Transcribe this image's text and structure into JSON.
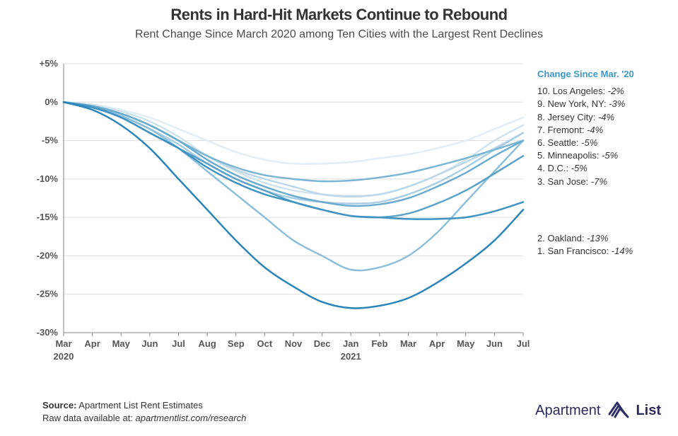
{
  "title": "Rents in Hard-Hit Markets Continue to Rebound",
  "title_fontsize": 22,
  "subtitle": "Rent Change Since March 2020 among Ten Cities with the Largest Rent Declines",
  "subtitle_fontsize": 16,
  "subtitle_color": "#4a4a4a",
  "chart": {
    "type": "line",
    "background_color": "#ffffff",
    "x_categories": [
      "Mar",
      "Apr",
      "May",
      "Jun",
      "Jul",
      "Aug",
      "Sep",
      "Oct",
      "Nov",
      "Dec",
      "Jan",
      "Feb",
      "Mar",
      "Apr",
      "May",
      "Jun",
      "Jul"
    ],
    "x_year_labels": {
      "0": "2020",
      "10": "2021"
    },
    "x_label_fontsize": 13,
    "x_label_weight": "700",
    "ylim": [
      -30,
      5
    ],
    "ytick_step": 5,
    "y_tick_labels": [
      "+5%",
      "0%",
      "-5%",
      "-10%",
      "-15%",
      "-20%",
      "-25%",
      "-30%"
    ],
    "y_tick_values": [
      5,
      0,
      -5,
      -10,
      -15,
      -20,
      -25,
      -30
    ],
    "grid_color": "#dddddd",
    "grid_width": 1,
    "axis_color": "#888888",
    "line_width": 2.5,
    "series": [
      {
        "key": "la",
        "label": "10. Los Angeles:",
        "value": "-2%",
        "color": "#e2eef4",
        "data": [
          0,
          -0.3,
          -1,
          -2,
          -3.5,
          -5,
          -6.5,
          -7.5,
          -8,
          -8,
          -7.8,
          -7.3,
          -6.8,
          -6,
          -5,
          -3.5,
          -2
        ]
      },
      {
        "key": "ny",
        "label": "9. New York, NY:",
        "value": "-3%",
        "color": "#cfe3ee",
        "data": [
          0,
          -0.4,
          -1.2,
          -2.5,
          -4.5,
          -7,
          -9,
          -10.5,
          -11.5,
          -12,
          -12.2,
          -12,
          -11,
          -9.5,
          -7.5,
          -5,
          -3
        ]
      },
      {
        "key": "jc",
        "label": "8. Jersey City:",
        "value": "-4%",
        "color": "#bcd8e8",
        "data": [
          0,
          -0.5,
          -1.5,
          -3,
          -5,
          -7,
          -8.8,
          -10,
          -11,
          -12,
          -12.3,
          -12,
          -11,
          -9.5,
          -7.8,
          -6,
          -4
        ]
      },
      {
        "key": "fr",
        "label": "7. Fremont:",
        "value": "-4%",
        "color": "#a9cde2",
        "data": [
          0,
          -0.6,
          -1.8,
          -3.5,
          -5.5,
          -8,
          -10,
          -11.5,
          -12.5,
          -13,
          -13.2,
          -13,
          -12,
          -10.5,
          -8.5,
          -6.2,
          -4
        ]
      },
      {
        "key": "sea",
        "label": "6. Seattle:",
        "value": "-5%",
        "color": "#8cbfda",
        "data": [
          0,
          -0.6,
          -1.8,
          -3.5,
          -6,
          -9,
          -12,
          -15,
          -18,
          -20,
          -21.8,
          -21.5,
          -20,
          -17,
          -13,
          -9,
          -5
        ]
      },
      {
        "key": "min",
        "label": "5. Minneapolis:",
        "value": "-5%",
        "color": "#7bb5d4",
        "data": [
          0,
          -0.5,
          -1.5,
          -3,
          -5,
          -7,
          -8.5,
          -9.5,
          -10,
          -10.3,
          -10.2,
          -9.8,
          -9.2,
          -8.3,
          -7.3,
          -6.2,
          -5
        ]
      },
      {
        "key": "dc",
        "label": "4. D.C.:",
        "value": "-5%",
        "color": "#6aaccf",
        "data": [
          0,
          -0.5,
          -1.5,
          -3,
          -5,
          -7.5,
          -9.5,
          -11,
          -12.2,
          -13,
          -13.5,
          -13.3,
          -12.5,
          -11,
          -9.2,
          -7,
          -5
        ]
      },
      {
        "key": "sj",
        "label": "3. San Jose:",
        "value": "-7%",
        "color": "#5aa2c9",
        "data": [
          0,
          -0.6,
          -2,
          -4,
          -6,
          -8,
          -10,
          -11.5,
          -13,
          -14,
          -14.8,
          -15,
          -14.5,
          -13.2,
          -11.5,
          -9.3,
          -7
        ]
      },
      {
        "key": "oak",
        "label": "2. Oakland:",
        "value": "-13%",
        "color": "#3f93c2",
        "data": [
          0,
          -0.7,
          -2,
          -4,
          -6,
          -8.5,
          -10.5,
          -12,
          -13,
          -14,
          -14.8,
          -15,
          -15.2,
          -15.2,
          -15,
          -14.2,
          -13
        ]
      },
      {
        "key": "sf",
        "label": "1. San Francisco:",
        "value": "-14%",
        "color": "#2b84b8",
        "data": [
          0,
          -1,
          -3,
          -6,
          -10,
          -14,
          -18,
          -21.5,
          -24,
          -26,
          -26.8,
          -26.5,
          -25.5,
          -23.5,
          -21,
          -18,
          -14
        ]
      }
    ]
  },
  "legend": {
    "header": "Change Since Mar. '20",
    "header_color": "#3c97c4",
    "items": [
      {
        "label": "10. Los Angeles:",
        "value": "-2%"
      },
      {
        "label": "9. New York, NY:",
        "value": "-3%"
      },
      {
        "label": "8. Jersey City:",
        "value": "-4%"
      },
      {
        "label": "7. Fremont:",
        "value": "-4%"
      },
      {
        "label": "6. Seattle:",
        "value": "-5%"
      },
      {
        "label": "5. Minneapolis:",
        "value": "-5%"
      },
      {
        "label": "4. D.C.:",
        "value": "-5%"
      },
      {
        "label": "3. San Jose:",
        "value": "-7%"
      }
    ],
    "items_bottom": [
      {
        "label": "2. Oakland:",
        "value": "-13%"
      },
      {
        "label": "1. San Francisco:",
        "value": "-14%"
      }
    ]
  },
  "footer": {
    "source_label": "Source:",
    "source_text": " Apartment List Rent Estimates",
    "raw_label": "Raw data available at: ",
    "raw_link": "apartmentlist.com/research"
  },
  "brand": {
    "word1": "Apartment",
    "word2": "List",
    "icon_color": "#2f2f66"
  }
}
